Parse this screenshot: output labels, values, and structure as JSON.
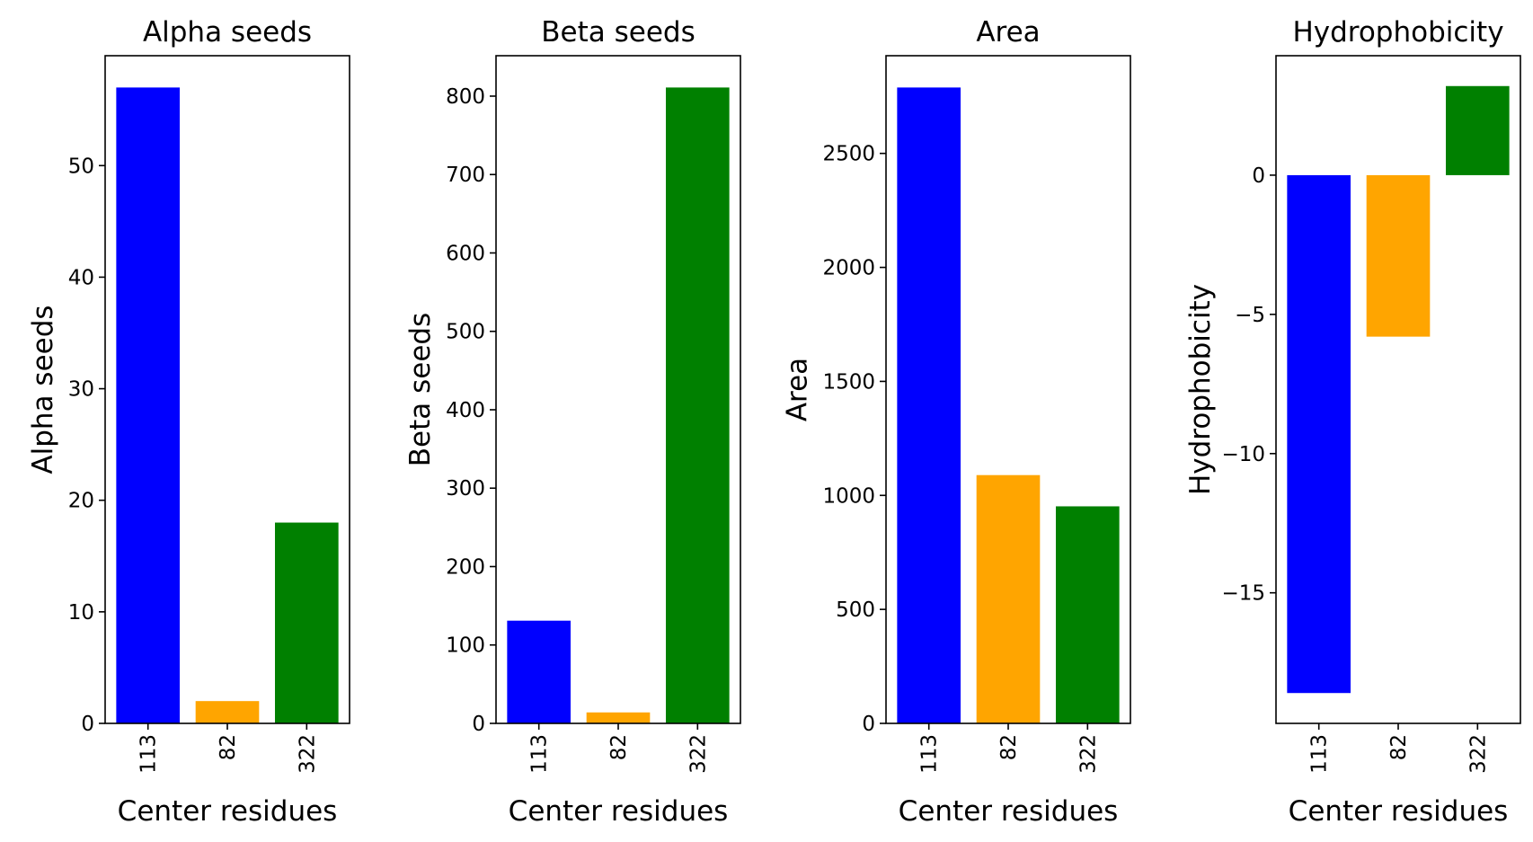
{
  "chart_data": [
    {
      "type": "bar",
      "title": "Alpha seeds",
      "xlabel": "Center residues",
      "ylabel": "Alpha seeds",
      "categories": [
        "113",
        "82",
        "322"
      ],
      "values": [
        57,
        2,
        18
      ],
      "colors": [
        "#0000ff",
        "#ffa500",
        "#008000"
      ],
      "ylim": [
        0,
        59.85
      ],
      "yticks": [
        0,
        10,
        20,
        30,
        40,
        50
      ]
    },
    {
      "type": "bar",
      "title": "Beta seeds",
      "xlabel": "Center residues",
      "ylabel": "Beta seeds",
      "categories": [
        "113",
        "82",
        "322"
      ],
      "values": [
        131,
        14,
        811
      ],
      "colors": [
        "#0000ff",
        "#ffa500",
        "#008000"
      ],
      "ylim": [
        0,
        851.55
      ],
      "yticks": [
        0,
        100,
        200,
        300,
        400,
        500,
        600,
        700,
        800
      ]
    },
    {
      "type": "bar",
      "title": "Area",
      "xlabel": "Center residues",
      "ylabel": "Area",
      "categories": [
        "113",
        "82",
        "322"
      ],
      "values": [
        2789,
        1089,
        952
      ],
      "colors": [
        "#0000ff",
        "#ffa500",
        "#008000"
      ],
      "ylim": [
        0,
        2928.45
      ],
      "yticks": [
        0,
        500,
        1000,
        1500,
        2000,
        2500
      ]
    },
    {
      "type": "bar",
      "title": "Hydrophobicity",
      "xlabel": "Center residues",
      "ylabel": "Hydrophobicity",
      "categories": [
        "113",
        "82",
        "322"
      ],
      "values": [
        -18.6,
        -5.8,
        3.2
      ],
      "colors": [
        "#0000ff",
        "#ffa500",
        "#008000"
      ],
      "ylim": [
        -19.69,
        4.29
      ],
      "yticks": [
        -15,
        -10,
        -5,
        0
      ]
    }
  ]
}
